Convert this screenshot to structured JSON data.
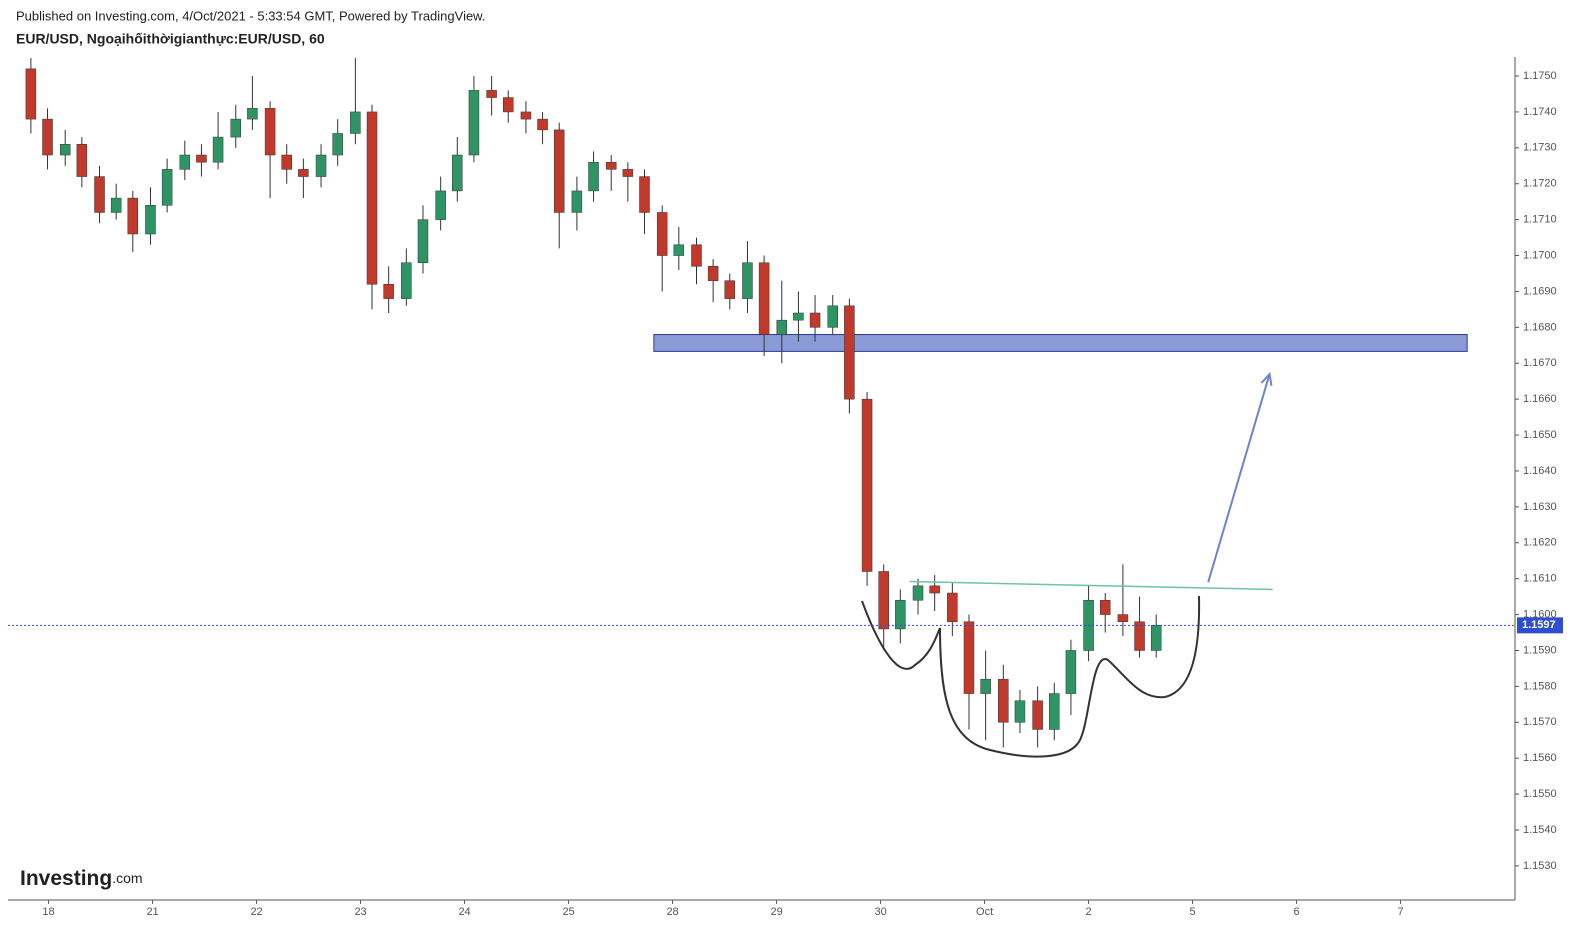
{
  "header": {
    "published": "Published on Investing.com, 4/Oct/2021 - 5:33:54 GMT, Powered by TradingView.",
    "symbol": "EUR/USD, Ngoạihốithờigianthực:EUR/USD, 60"
  },
  "logo": {
    "brand": "Investing",
    "suffix": ".com"
  },
  "chart_data": {
    "type": "candlestick",
    "xlim": [
      -0.39,
      14.1
    ],
    "ylim": [
      1.15205,
      1.17553
    ],
    "up_color": "#2f9464",
    "down_color": "#c0392b",
    "xticks": [
      {
        "value": 0,
        "label": "18"
      },
      {
        "value": 1,
        "label": "21"
      },
      {
        "value": 2,
        "label": "22"
      },
      {
        "value": 3,
        "label": "23"
      },
      {
        "value": 4,
        "label": "24"
      },
      {
        "value": 5,
        "label": "25"
      },
      {
        "value": 6,
        "label": "28"
      },
      {
        "value": 7,
        "label": "29"
      },
      {
        "value": 8,
        "label": "30"
      },
      {
        "value": 9,
        "label": "Oct"
      },
      {
        "value": 10,
        "label": "2"
      },
      {
        "value": 11,
        "label": "5"
      },
      {
        "value": 12,
        "label": "6"
      },
      {
        "value": 13,
        "label": "7"
      }
    ],
    "yticks": [
      {
        "value": 1.153,
        "label": "1.1530"
      },
      {
        "value": 1.154,
        "label": "1.1540"
      },
      {
        "value": 1.155,
        "label": "1.1550"
      },
      {
        "value": 1.156,
        "label": "1.1560"
      },
      {
        "value": 1.157,
        "label": "1.1570"
      },
      {
        "value": 1.158,
        "label": "1.1580"
      },
      {
        "value": 1.159,
        "label": "1.1590"
      },
      {
        "value": 1.16,
        "label": "1.1600"
      },
      {
        "value": 1.161,
        "label": "1.1610"
      },
      {
        "value": 1.162,
        "label": "1.1620"
      },
      {
        "value": 1.163,
        "label": "1.1630"
      },
      {
        "value": 1.164,
        "label": "1.1640"
      },
      {
        "value": 1.165,
        "label": "1.1650"
      },
      {
        "value": 1.166,
        "label": "1.1660"
      },
      {
        "value": 1.167,
        "label": "1.1670"
      },
      {
        "value": 1.168,
        "label": "1.1680"
      },
      {
        "value": 1.169,
        "label": "1.1690"
      },
      {
        "value": 1.17,
        "label": "1.1700"
      },
      {
        "value": 1.171,
        "label": "1.1710"
      },
      {
        "value": 1.172,
        "label": "1.1720"
      },
      {
        "value": 1.173,
        "label": "1.1730"
      },
      {
        "value": 1.174,
        "label": "1.1740"
      },
      {
        "value": 1.175,
        "label": "1.1750"
      }
    ],
    "x": [
      -0.17,
      -0.01,
      0.16,
      0.32,
      0.49,
      0.65,
      0.81,
      0.98,
      1.14,
      1.31,
      1.47,
      1.63,
      1.8,
      1.96,
      2.13,
      2.29,
      2.45,
      2.62,
      2.78,
      2.95,
      3.11,
      3.27,
      3.44,
      3.6,
      3.77,
      3.93,
      4.09,
      4.26,
      4.42,
      4.59,
      4.75,
      4.91,
      5.08,
      5.24,
      5.41,
      5.57,
      5.73,
      5.9,
      6.06,
      6.23,
      6.39,
      6.55,
      6.72,
      6.88,
      7.05,
      7.21,
      7.37,
      7.54,
      7.7,
      7.87,
      8.03,
      8.19,
      8.36,
      8.52,
      8.69,
      8.85,
      9.01,
      9.18,
      9.34,
      9.51,
      9.67,
      9.83,
      10.0,
      10.16,
      10.33,
      10.49,
      10.65
    ],
    "open": [
      1.1752,
      1.1738,
      1.1728,
      1.1731,
      1.1722,
      1.1712,
      1.1716,
      1.1706,
      1.1714,
      1.1724,
      1.1728,
      1.1726,
      1.1733,
      1.1738,
      1.1741,
      1.1728,
      1.1724,
      1.1722,
      1.1728,
      1.1734,
      1.174,
      1.1692,
      1.1688,
      1.1698,
      1.171,
      1.1718,
      1.1728,
      1.1746,
      1.1744,
      1.174,
      1.1738,
      1.1735,
      1.1712,
      1.1718,
      1.1726,
      1.1724,
      1.1722,
      1.1712,
      1.17,
      1.1703,
      1.1697,
      1.1693,
      1.1688,
      1.1698,
      1.1678,
      1.1682,
      1.1684,
      1.168,
      1.1686,
      1.166,
      1.1612,
      1.1596,
      1.1604,
      1.1608,
      1.1606,
      1.1598,
      1.1578,
      1.1582,
      1.157,
      1.1576,
      1.1568,
      1.1578,
      1.159,
      1.1604,
      1.16,
      1.1598,
      1.159
    ],
    "high": [
      1.1755,
      1.1741,
      1.1735,
      1.1733,
      1.1725,
      1.172,
      1.1718,
      1.1719,
      1.1727,
      1.1732,
      1.1731,
      1.174,
      1.1742,
      1.175,
      1.1743,
      1.1731,
      1.1727,
      1.1731,
      1.1738,
      1.1755,
      1.1742,
      1.1697,
      1.1702,
      1.1714,
      1.1722,
      1.1733,
      1.175,
      1.175,
      1.1746,
      1.1743,
      1.174,
      1.1737,
      1.1722,
      1.1729,
      1.1728,
      1.1726,
      1.1724,
      1.1714,
      1.1708,
      1.1705,
      1.1699,
      1.1695,
      1.1704,
      1.17,
      1.1693,
      1.169,
      1.1689,
      1.1689,
      1.1688,
      1.1662,
      1.1614,
      1.1607,
      1.161,
      1.1611,
      1.1609,
      1.16,
      1.159,
      1.1586,
      1.1579,
      1.158,
      1.1581,
      1.1593,
      1.1608,
      1.1606,
      1.1614,
      1.1605,
      1.16
    ],
    "low": [
      1.1734,
      1.1724,
      1.1725,
      1.1719,
      1.1709,
      1.171,
      1.1701,
      1.1703,
      1.1712,
      1.1721,
      1.1722,
      1.1724,
      1.173,
      1.1735,
      1.1716,
      1.172,
      1.1716,
      1.1719,
      1.1725,
      1.1731,
      1.1685,
      1.1684,
      1.1686,
      1.1695,
      1.1707,
      1.1715,
      1.1726,
      1.1739,
      1.1737,
      1.1734,
      1.1731,
      1.1702,
      1.1707,
      1.1715,
      1.1718,
      1.1715,
      1.1706,
      1.169,
      1.1696,
      1.1692,
      1.1687,
      1.1685,
      1.1684,
      1.1672,
      1.167,
      1.1676,
      1.1676,
      1.1678,
      1.1656,
      1.1608,
      1.159,
      1.1592,
      1.16,
      1.1601,
      1.1594,
      1.1568,
      1.1565,
      1.1563,
      1.1567,
      1.1563,
      1.1565,
      1.1572,
      1.1587,
      1.1595,
      1.1594,
      1.1588,
      1.1588
    ],
    "close": [
      1.1738,
      1.1728,
      1.1731,
      1.1722,
      1.1712,
      1.1716,
      1.1706,
      1.1714,
      1.1724,
      1.1728,
      1.1726,
      1.1733,
      1.1738,
      1.1741,
      1.1728,
      1.1724,
      1.1722,
      1.1728,
      1.1734,
      1.174,
      1.1692,
      1.1688,
      1.1698,
      1.171,
      1.1718,
      1.1728,
      1.1746,
      1.1744,
      1.174,
      1.1738,
      1.1735,
      1.1712,
      1.1718,
      1.1726,
      1.1724,
      1.1722,
      1.1712,
      1.17,
      1.1703,
      1.1697,
      1.1693,
      1.1688,
      1.1698,
      1.1678,
      1.1682,
      1.1684,
      1.168,
      1.1686,
      1.166,
      1.1612,
      1.1596,
      1.1604,
      1.1608,
      1.1606,
      1.1598,
      1.1578,
      1.1582,
      1.157,
      1.1576,
      1.1568,
      1.1578,
      1.159,
      1.1604,
      1.16,
      1.1598,
      1.159,
      1.1597
    ],
    "last_price": 1.1597,
    "last_price_color": "#2e4fd0",
    "zone": {
      "x": [
        5.82,
        13.64
      ],
      "y": [
        1.16733,
        1.1678
      ],
      "color": "#8a9ad6"
    },
    "neckline": {
      "x": [
        8.28,
        11.77
      ],
      "y": [
        1.16092,
        1.1607
      ],
      "color": "#6cc3a8"
    },
    "arrow": {
      "x": [
        11.15,
        11.74
      ],
      "y": [
        1.1609,
        1.1667
      ],
      "color": "#6c84cf"
    }
  }
}
